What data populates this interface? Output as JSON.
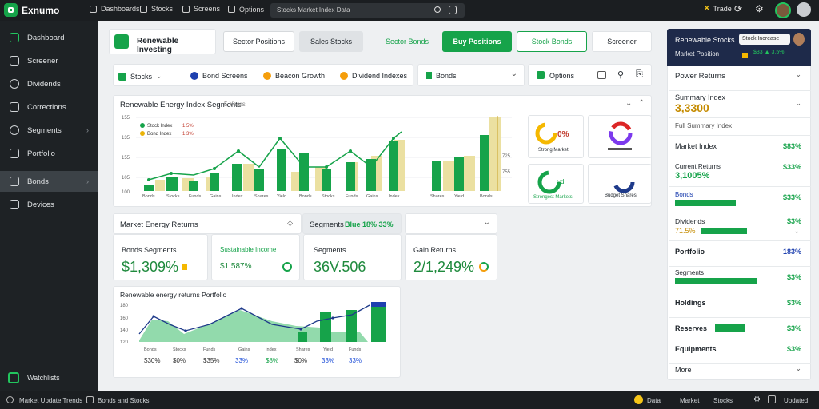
{
  "app": {
    "name": "Exnumo"
  },
  "topnav": [
    {
      "label": "Dashboards"
    },
    {
      "label": "Stocks"
    },
    {
      "label": "Screens"
    },
    {
      "label": "Options"
    }
  ],
  "search": {
    "value": "Stocks Market Index Data"
  },
  "topright": {
    "label": "Trade"
  },
  "sidebar": {
    "items": [
      {
        "label": "Dashboard"
      },
      {
        "label": "Screener"
      },
      {
        "label": "Dividends"
      },
      {
        "label": "Corrections"
      },
      {
        "label": "Segments"
      },
      {
        "label": "Portfolio"
      },
      {
        "label": "Bonds"
      },
      {
        "label": "Devices"
      }
    ],
    "footer": "Watchlists"
  },
  "toolbar": {
    "title": "Renewable Investing",
    "b1": "Sector Positions",
    "b2": "Sales Stocks",
    "b3": "Sector Bonds",
    "b4": "Buy Positions",
    "b5": "Stock Bonds",
    "b6": "Screener"
  },
  "filters": {
    "f1": "Stocks",
    "f2": "Bond Screens",
    "f3": "Beacon Growth",
    "f4": "Dividend Indexes",
    "f5": "Bonds",
    "f6": "Options"
  },
  "main_chart": {
    "title": "Renewable Energy Index Segments",
    "subtitle": "5 Years"
  },
  "donuts": {
    "d1": "Strong Market",
    "d3": "Strongest Markets",
    "d4": "Budget Shares"
  },
  "section": {
    "title": "Market Energy Returns",
    "tab": "Segments",
    "tab_value": "Blue 18% 33%"
  },
  "kpis": [
    {
      "label": "Bonds Segments",
      "value": "$1,309%"
    },
    {
      "label": "Sustainable Income",
      "value": "$1,587%"
    },
    {
      "label": "Segments",
      "value": "36V.506"
    },
    {
      "label": "Gain Returns",
      "value": "2/1,249%"
    }
  ],
  "bottom_chart": {
    "title": "Renewable energy returns Portfolio",
    "values": [
      "$30%",
      "$0%",
      "$35%",
      "33%",
      "$8%",
      "$0%",
      "33%",
      "33%"
    ]
  },
  "rightpanel": {
    "title": "Renewable Stocks",
    "sub": "Market Position",
    "badge": "Stock Increase",
    "rows": [
      {
        "name": "Power Returns",
        "value": ""
      },
      {
        "name": "Summary Index",
        "value": "3,3300"
      },
      {
        "name": "Full Summary Index",
        "value": ""
      },
      {
        "name": "Market Index",
        "value": "$83%"
      },
      {
        "name": "Current Returns",
        "value": "3,1005%"
      },
      {
        "name": "Bonds",
        "value": "$33%"
      },
      {
        "name": "Dividends",
        "value": "$3%"
      },
      {
        "name": "Portfolio",
        "value": "183%"
      },
      {
        "name": "Segments",
        "value": "$3%"
      },
      {
        "name": "Holdings",
        "value": "$3%"
      },
      {
        "name": "Reserves",
        "value": "$3%"
      },
      {
        "name": "Equipments",
        "value": "$3%"
      },
      {
        "name": "More",
        "value": ""
      }
    ]
  },
  "statusbar": {
    "left": "Market Update Trends",
    "mid": "Bonds and Stocks",
    "r1": "Data",
    "r2": "Market",
    "r3": "Stocks",
    "r4": "Updated"
  }
}
